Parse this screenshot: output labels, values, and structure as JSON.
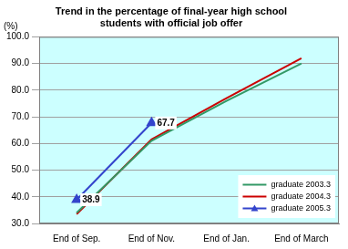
{
  "chart_data": {
    "type": "line",
    "title": [
      "Trend in the percentage of final-year high school",
      "students with official job offer"
    ],
    "y_label": "(%)",
    "categories": [
      "End of Sep.",
      "End of Nov.",
      "End of Jan.",
      "End of March"
    ],
    "series": [
      {
        "name": "graduate 2003.3",
        "color": "#339966",
        "marker": "none",
        "values": [
          34.0,
          61.0,
          76.0,
          90.0
        ]
      },
      {
        "name": "graduate 2004.3",
        "color": "#cc0000",
        "marker": "none",
        "values": [
          33.5,
          61.5,
          77.0,
          92.0
        ]
      },
      {
        "name": "graduate 2005.3",
        "color": "#3344cc",
        "marker": "triangle",
        "data_labels": true,
        "values": [
          38.9,
          67.7,
          null,
          null
        ]
      }
    ],
    "ylim": [
      30,
      100
    ],
    "yticks": [
      {
        "value": 30,
        "label": "30.0"
      },
      {
        "value": 40,
        "label": "40.0"
      },
      {
        "value": 50,
        "label": "50.0"
      },
      {
        "value": 60,
        "label": "60.0"
      },
      {
        "value": 70,
        "label": "70.0"
      },
      {
        "value": 80,
        "label": "80.0"
      },
      {
        "value": 90,
        "label": "90.0"
      },
      {
        "value": 100,
        "label": "100.0"
      }
    ],
    "grid": true,
    "legend": "lower right"
  }
}
